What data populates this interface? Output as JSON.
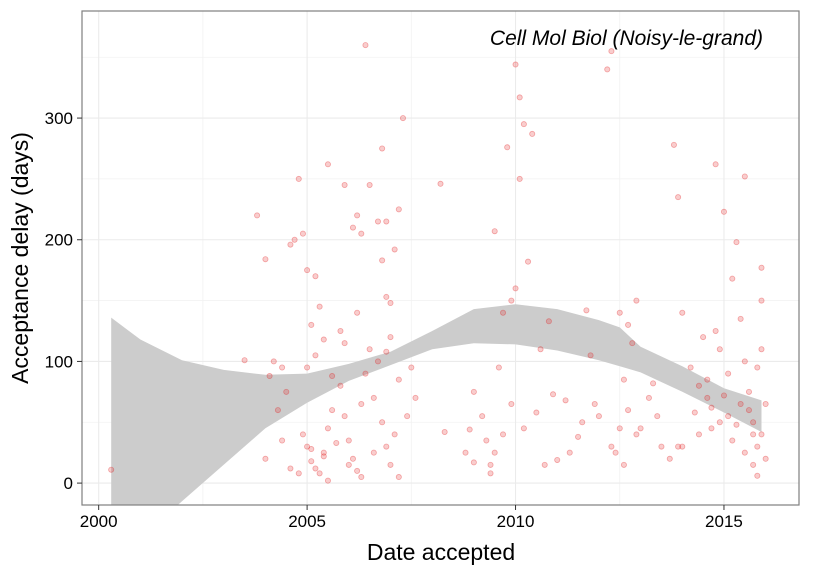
{
  "chart_data": {
    "type": "scatter",
    "title": "Cell Mol Biol (Noisy-le-grand)",
    "xlabel": "Date accepted",
    "ylabel": "Acceptance delay (days)",
    "xlim": [
      1999.6,
      2016.8
    ],
    "ylim": [
      -18,
      388
    ],
    "x_ticks": [
      2000,
      2005,
      2010,
      2015
    ],
    "x_tick_labels": [
      "2000",
      "2005",
      "2010",
      "2015"
    ],
    "y_ticks": [
      0,
      100,
      200,
      300
    ],
    "y_tick_labels": [
      "0",
      "100",
      "200",
      "300"
    ],
    "grid": true,
    "point_color": "#e31a1c",
    "band_color": "#cccccc",
    "points": [
      [
        2000.3,
        11
      ],
      [
        2003.8,
        220
      ],
      [
        2004.0,
        184
      ],
      [
        2004.2,
        100
      ],
      [
        2004.4,
        95
      ],
      [
        2004.6,
        196
      ],
      [
        2004.7,
        200
      ],
      [
        2004.8,
        250
      ],
      [
        2004.9,
        205
      ],
      [
        2005.0,
        175
      ],
      [
        2005.1,
        130
      ],
      [
        2005.2,
        170
      ],
      [
        2005.3,
        145
      ],
      [
        2005.5,
        262
      ],
      [
        2005.9,
        245
      ],
      [
        2006.1,
        210
      ],
      [
        2006.2,
        220
      ],
      [
        2006.3,
        205
      ],
      [
        2006.4,
        360
      ],
      [
        2006.5,
        245
      ],
      [
        2006.7,
        215
      ],
      [
        2006.8,
        275
      ],
      [
        2006.9,
        215
      ],
      [
        2007.1,
        192
      ],
      [
        2007.2,
        225
      ],
      [
        2007.3,
        300
      ],
      [
        2008.2,
        246
      ],
      [
        2004.3,
        60
      ],
      [
        2004.5,
        75
      ],
      [
        2004.9,
        40
      ],
      [
        2005.0,
        30
      ],
      [
        2005.1,
        18
      ],
      [
        2005.2,
        12
      ],
      [
        2005.3,
        8
      ],
      [
        2005.4,
        22
      ],
      [
        2005.5,
        45
      ],
      [
        2005.6,
        60
      ],
      [
        2005.8,
        80
      ],
      [
        2005.9,
        55
      ],
      [
        2006.0,
        35
      ],
      [
        2006.1,
        20
      ],
      [
        2006.2,
        10
      ],
      [
        2006.3,
        65
      ],
      [
        2006.4,
        90
      ],
      [
        2006.6,
        70
      ],
      [
        2006.8,
        50
      ],
      [
        2006.9,
        30
      ],
      [
        2007.0,
        15
      ],
      [
        2007.1,
        40
      ],
      [
        2007.2,
        85
      ],
      [
        2005.0,
        95
      ],
      [
        2005.2,
        105
      ],
      [
        2005.4,
        118
      ],
      [
        2005.6,
        88
      ],
      [
        2005.8,
        125
      ],
      [
        2006.2,
        140
      ],
      [
        2006.5,
        110
      ],
      [
        2006.7,
        100
      ],
      [
        2007.0,
        120
      ],
      [
        2007.5,
        95
      ],
      [
        2008.3,
        42
      ],
      [
        2004.0,
        20
      ],
      [
        2004.6,
        12
      ],
      [
        2004.8,
        8
      ],
      [
        2005.1,
        28
      ],
      [
        2005.7,
        33
      ],
      [
        2008.9,
        44
      ],
      [
        2009.0,
        17
      ],
      [
        2009.3,
        35
      ],
      [
        2009.4,
        8
      ],
      [
        2009.5,
        25
      ],
      [
        2009.6,
        95
      ],
      [
        2009.7,
        140
      ],
      [
        2009.9,
        150
      ],
      [
        2010.0,
        160
      ],
      [
        2010.0,
        344
      ],
      [
        2010.1,
        317
      ],
      [
        2010.2,
        295
      ],
      [
        2009.8,
        276
      ],
      [
        2009.5,
        207
      ],
      [
        2010.1,
        250
      ],
      [
        2010.3,
        182
      ],
      [
        2010.4,
        287
      ],
      [
        2010.6,
        110
      ],
      [
        2010.8,
        133
      ],
      [
        2011.0,
        19
      ],
      [
        2011.2,
        68
      ],
      [
        2011.5,
        38
      ],
      [
        2011.8,
        105
      ],
      [
        2012.0,
        55
      ],
      [
        2012.2,
        340
      ],
      [
        2012.3,
        355
      ],
      [
        2012.5,
        140
      ],
      [
        2012.6,
        85
      ],
      [
        2012.7,
        60
      ],
      [
        2012.8,
        115
      ],
      [
        2012.9,
        150
      ],
      [
        2012.4,
        25
      ],
      [
        2012.6,
        15
      ],
      [
        2013.0,
        45
      ],
      [
        2013.3,
        82
      ],
      [
        2013.5,
        30
      ],
      [
        2013.8,
        278
      ],
      [
        2013.9,
        235
      ],
      [
        2014.0,
        140
      ],
      [
        2014.2,
        95
      ],
      [
        2014.4,
        80
      ],
      [
        2014.5,
        120
      ],
      [
        2014.6,
        70
      ],
      [
        2014.7,
        45
      ],
      [
        2014.8,
        262
      ],
      [
        2014.9,
        110
      ],
      [
        2015.0,
        223
      ],
      [
        2015.1,
        90
      ],
      [
        2015.2,
        168
      ],
      [
        2015.3,
        198
      ],
      [
        2015.4,
        135
      ],
      [
        2015.5,
        252
      ],
      [
        2015.6,
        75
      ],
      [
        2015.7,
        50
      ],
      [
        2015.8,
        30
      ],
      [
        2015.8,
        6
      ],
      [
        2015.9,
        177
      ],
      [
        2015.9,
        150
      ],
      [
        2015.9,
        40
      ],
      [
        2016.0,
        20
      ],
      [
        2015.6,
        60
      ],
      [
        2015.7,
        40
      ],
      [
        2015.5,
        25
      ],
      [
        2015.4,
        65
      ],
      [
        2015.3,
        48
      ],
      [
        2015.2,
        35
      ],
      [
        2015.1,
        55
      ],
      [
        2015.0,
        72
      ],
      [
        2014.9,
        50
      ],
      [
        2014.7,
        62
      ],
      [
        2014.6,
        85
      ],
      [
        2014.4,
        40
      ],
      [
        2014.3,
        58
      ],
      [
        2014.0,
        30
      ],
      [
        2013.7,
        20
      ],
      [
        2013.4,
        55
      ],
      [
        2013.2,
        70
      ],
      [
        2012.9,
        40
      ],
      [
        2012.5,
        45
      ],
      [
        2012.3,
        30
      ],
      [
        2011.9,
        65
      ],
      [
        2011.6,
        50
      ],
      [
        2011.3,
        25
      ],
      [
        2010.9,
        73
      ],
      [
        2010.5,
        58
      ],
      [
        2010.2,
        45
      ],
      [
        2009.9,
        65
      ],
      [
        2009.7,
        40
      ],
      [
        2009.4,
        15
      ],
      [
        2009.2,
        55
      ],
      [
        2009.0,
        75
      ],
      [
        2008.8,
        25
      ],
      [
        2003.5,
        101
      ],
      [
        2004.1,
        88
      ],
      [
        2007.4,
        55
      ],
      [
        2007.6,
        70
      ],
      [
        2006.0,
        15
      ],
      [
        2006.3,
        5
      ],
      [
        2006.6,
        25
      ],
      [
        2007.2,
        5
      ],
      [
        2005.5,
        2
      ],
      [
        2004.4,
        35
      ],
      [
        2005.9,
        115
      ],
      [
        2006.9,
        108
      ],
      [
        2006.8,
        183
      ],
      [
        2006.9,
        153
      ],
      [
        2007.0,
        148
      ],
      [
        2005.4,
        25
      ],
      [
        2015.8,
        95
      ],
      [
        2015.9,
        110
      ],
      [
        2016.0,
        65
      ],
      [
        2015.7,
        15
      ],
      [
        2015.5,
        100
      ],
      [
        2014.8,
        125
      ],
      [
        2012.7,
        130
      ],
      [
        2013.9,
        30
      ],
      [
        2011.7,
        142
      ],
      [
        2010.7,
        15
      ]
    ],
    "band_upper": [
      [
        2000.3,
        136
      ],
      [
        2001,
        118
      ],
      [
        2002,
        101
      ],
      [
        2003,
        93
      ],
      [
        2004,
        89
      ],
      [
        2005,
        90
      ],
      [
        2006,
        98
      ],
      [
        2007,
        108
      ],
      [
        2008,
        125
      ],
      [
        2009,
        143
      ],
      [
        2010,
        147
      ],
      [
        2011,
        143
      ],
      [
        2012,
        134
      ],
      [
        2012.5,
        128
      ],
      [
        2013,
        112
      ],
      [
        2014,
        96
      ],
      [
        2015,
        78
      ],
      [
        2015.9,
        68
      ]
    ],
    "band_lower": [
      [
        2000.3,
        -70
      ],
      [
        2001,
        -45
      ],
      [
        2002,
        -15
      ],
      [
        2003,
        15
      ],
      [
        2004,
        45
      ],
      [
        2005,
        66
      ],
      [
        2006,
        84
      ],
      [
        2007,
        97
      ],
      [
        2008,
        110
      ],
      [
        2009,
        115
      ],
      [
        2010,
        114
      ],
      [
        2011,
        109
      ],
      [
        2012,
        101
      ],
      [
        2012.5,
        96
      ],
      [
        2013,
        91
      ],
      [
        2014,
        75
      ],
      [
        2015,
        58
      ],
      [
        2015.9,
        42
      ]
    ]
  }
}
